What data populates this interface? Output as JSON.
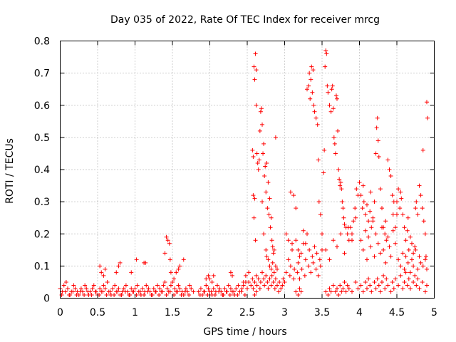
{
  "chart_data": {
    "type": "scatter",
    "title": "Day 035 of 2022, Rate Of TEC Index for receiver mrcg",
    "xlabel": "GPS time / hours",
    "ylabel": "ROTI / TECUs",
    "xlim": [
      0,
      5
    ],
    "ylim": [
      0,
      0.8
    ],
    "grid": true,
    "marker": "+",
    "series_color": "#ff0000",
    "x_ticks": [
      {
        "value": 0,
        "label": "0"
      },
      {
        "value": 0.5,
        "label": "0.5"
      },
      {
        "value": 1,
        "label": "1"
      },
      {
        "value": 1.5,
        "label": "1.5"
      },
      {
        "value": 2,
        "label": "2"
      },
      {
        "value": 2.5,
        "label": "2.5"
      },
      {
        "value": 3,
        "label": "3"
      },
      {
        "value": 3.5,
        "label": "3.5"
      },
      {
        "value": 4,
        "label": "4"
      },
      {
        "value": 4.5,
        "label": "4.5"
      },
      {
        "value": 5,
        "label": "5"
      }
    ],
    "y_ticks": [
      {
        "value": 0,
        "label": "0"
      },
      {
        "value": 0.1,
        "label": "0.1"
      },
      {
        "value": 0.2,
        "label": "0.2"
      },
      {
        "value": 0.3,
        "label": "0.3"
      },
      {
        "value": 0.4,
        "label": "0.4"
      },
      {
        "value": 0.5,
        "label": "0.5"
      },
      {
        "value": 0.6,
        "label": "0.6"
      },
      {
        "value": 0.7,
        "label": "0.7"
      },
      {
        "value": 0.8,
        "label": "0.8"
      }
    ],
    "series": [
      {
        "name": "ROTI",
        "x": [
          0.0,
          0.03,
          0.05,
          0.08,
          0.1,
          0.13,
          0.15,
          0.18,
          0.2,
          0.23,
          0.25,
          0.28,
          0.3,
          0.33,
          0.35,
          0.38,
          0.4,
          0.43,
          0.45,
          0.48,
          0.5,
          0.53,
          0.55,
          0.58,
          0.6,
          0.63,
          0.65,
          0.68,
          0.7,
          0.73,
          0.75,
          0.78,
          0.8,
          0.83,
          0.85,
          0.88,
          0.9,
          0.93,
          0.95,
          0.98,
          1.0,
          1.03,
          1.05,
          1.08,
          1.1,
          1.13,
          1.15,
          1.18,
          1.2,
          1.23,
          1.25,
          1.28,
          1.3,
          1.33,
          1.35,
          1.38,
          1.4,
          1.43,
          1.45,
          1.48,
          1.5,
          1.53,
          1.55,
          1.58,
          1.6,
          1.63,
          1.65,
          1.68,
          1.7,
          1.73,
          1.75,
          1.78,
          0.02,
          0.07,
          0.12,
          0.17,
          0.22,
          0.27,
          0.32,
          0.37,
          0.42,
          0.47,
          0.52,
          0.57,
          0.62,
          0.67,
          0.72,
          0.77,
          0.82,
          0.87,
          0.92,
          0.97,
          1.02,
          1.07,
          1.12,
          1.17,
          1.22,
          1.27,
          1.32,
          1.37,
          1.42,
          1.47,
          1.52,
          1.57,
          1.62,
          1.67,
          1.72,
          0.53,
          0.55,
          0.58,
          0.6,
          0.75,
          0.78,
          0.8,
          0.95,
          1.02,
          1.12,
          1.14,
          1.4,
          1.42,
          1.44,
          1.46,
          1.47,
          1.48,
          1.52,
          1.55,
          1.58,
          1.6,
          1.65,
          1.85,
          1.88,
          1.9,
          1.93,
          1.95,
          1.98,
          2.0,
          2.03,
          2.05,
          2.08,
          2.1,
          2.13,
          2.15,
          2.18,
          2.2,
          2.23,
          2.25,
          2.28,
          2.3,
          2.33,
          2.35,
          2.38,
          2.4,
          2.43,
          2.45,
          2.48,
          2.5,
          1.87,
          1.92,
          1.97,
          2.02,
          2.07,
          2.12,
          2.17,
          2.22,
          2.27,
          2.32,
          2.37,
          2.42,
          2.47,
          1.95,
          1.98,
          2.0,
          2.03,
          2.05,
          2.28,
          2.3,
          2.45,
          2.48,
          2.52,
          2.52,
          2.55,
          2.57,
          2.58,
          2.6,
          2.62,
          2.63,
          2.65,
          2.67,
          2.68,
          2.7,
          2.72,
          2.73,
          2.75,
          2.77,
          2.78,
          2.8,
          2.82,
          2.83,
          2.85,
          2.87,
          2.88,
          2.9,
          2.92,
          2.93,
          2.95,
          2.97,
          2.98,
          2.57,
          2.58,
          2.59,
          2.6,
          2.61,
          2.62,
          2.63,
          2.64,
          2.65,
          2.66,
          2.67,
          2.68,
          2.69,
          2.7,
          2.71,
          2.72,
          2.73,
          2.74,
          2.75,
          2.76,
          2.77,
          2.78,
          2.79,
          2.8,
          2.81,
          2.82,
          2.83,
          2.84,
          2.85,
          2.86,
          2.88,
          2.58,
          2.59,
          2.6,
          2.61,
          2.62,
          2.7,
          2.72,
          2.75,
          2.76,
          2.78,
          2.8,
          2.82,
          2.84,
          2.86,
          2.88,
          2.9,
          3.0,
          3.02,
          3.05,
          3.07,
          3.08,
          3.1,
          3.12,
          3.13,
          3.15,
          3.17,
          3.18,
          3.2,
          3.22,
          3.23,
          3.25,
          3.27,
          3.28,
          3.3,
          3.32,
          3.33,
          3.35,
          3.37,
          3.38,
          3.4,
          3.42,
          3.43,
          3.45,
          3.47,
          3.48,
          3.5,
          3.02,
          3.05,
          3.08,
          3.1,
          3.12,
          3.15,
          3.18,
          3.2,
          3.25,
          3.28,
          3.3,
          3.32,
          3.33,
          3.34,
          3.35,
          3.36,
          3.37,
          3.38,
          3.39,
          3.4,
          3.42,
          3.44,
          3.45,
          3.46,
          3.48,
          3.5,
          3.52,
          3.53,
          3.54,
          3.55,
          3.56,
          3.57,
          3.58,
          3.6,
          3.62,
          3.63,
          3.64,
          3.65,
          3.66,
          3.67,
          3.68,
          3.69,
          3.7,
          3.71,
          3.72,
          3.73,
          3.74,
          3.75,
          3.76,
          3.77,
          3.78,
          3.79,
          3.8,
          3.82,
          3.84,
          3.86,
          3.88,
          3.9,
          3.92,
          3.94,
          3.96,
          3.98,
          3.55,
          3.6,
          3.65,
          3.7,
          3.75,
          3.8,
          3.85,
          3.9,
          3.95,
          4.0,
          4.02,
          4.04,
          4.05,
          4.06,
          4.08,
          4.1,
          4.12,
          4.14,
          4.15,
          4.16,
          4.18,
          4.2,
          4.22,
          4.23,
          4.24,
          4.25,
          4.26,
          4.28,
          4.3,
          4.32,
          4.34,
          4.35,
          4.36,
          4.38,
          4.4,
          4.42,
          4.44,
          4.45,
          4.46,
          4.48,
          4.5,
          4.02,
          4.05,
          4.08,
          4.1,
          4.12,
          4.15,
          4.18,
          4.2,
          4.22,
          4.25,
          4.28,
          4.3,
          4.32,
          4.35,
          4.38,
          4.4,
          4.42,
          4.45,
          4.48,
          4.5,
          4.52,
          4.54,
          4.55,
          4.56,
          4.58,
          4.6,
          4.62,
          4.64,
          4.65,
          4.66,
          4.68,
          4.7,
          4.72,
          4.74,
          4.75,
          4.76,
          4.78,
          4.8,
          4.82,
          4.84,
          4.85,
          4.86,
          4.88,
          4.89,
          4.9,
          4.91,
          4.52,
          4.55,
          4.58,
          4.6,
          4.62,
          4.65,
          4.68,
          4.7,
          4.72,
          4.75,
          4.78,
          4.8,
          4.82,
          4.85,
          4.88,
          4.9,
          2.6,
          2.62,
          3.15,
          3.18,
          3.2,
          3.22,
          3.55,
          3.58,
          3.6,
          3.62,
          3.65,
          3.68,
          3.7,
          3.72,
          3.74,
          3.76,
          3.78,
          3.8,
          3.82,
          3.84,
          3.86,
          3.9,
          3.95,
          3.98,
          4.02,
          4.05,
          4.08,
          4.1,
          4.12,
          4.14,
          4.16,
          4.2,
          4.22,
          4.24,
          4.26,
          4.28,
          4.3,
          4.32,
          4.34,
          4.36,
          4.38,
          4.42,
          4.44,
          4.46,
          4.48,
          4.52,
          4.55,
          4.58,
          4.6,
          4.62,
          4.64,
          4.66,
          4.68,
          4.72,
          4.74,
          4.76,
          4.78,
          4.8,
          4.84,
          4.88,
          4.9
        ],
        "y": [
          0.03,
          0.02,
          0.04,
          0.05,
          0.03,
          0.01,
          0.02,
          0.04,
          0.03,
          0.02,
          0.01,
          0.03,
          0.02,
          0.04,
          0.03,
          0.01,
          0.02,
          0.03,
          0.04,
          0.02,
          0.01,
          0.03,
          0.02,
          0.04,
          0.03,
          0.05,
          0.02,
          0.01,
          0.03,
          0.04,
          0.02,
          0.03,
          0.01,
          0.02,
          0.03,
          0.04,
          0.02,
          0.01,
          0.03,
          0.02,
          0.03,
          0.04,
          0.02,
          0.01,
          0.03,
          0.02,
          0.04,
          0.03,
          0.02,
          0.01,
          0.03,
          0.02,
          0.04,
          0.03,
          0.02,
          0.04,
          0.05,
          0.03,
          0.02,
          0.04,
          0.05,
          0.03,
          0.02,
          0.04,
          0.03,
          0.02,
          0.01,
          0.03,
          0.02,
          0.04,
          0.03,
          0.02,
          0.01,
          0.02,
          0.01,
          0.02,
          0.01,
          0.02,
          0.01,
          0.02,
          0.01,
          0.02,
          0.01,
          0.02,
          0.01,
          0.02,
          0.01,
          0.02,
          0.01,
          0.02,
          0.01,
          0.02,
          0.01,
          0.02,
          0.01,
          0.02,
          0.01,
          0.02,
          0.01,
          0.02,
          0.01,
          0.02,
          0.01,
          0.02,
          0.01,
          0.02,
          0.01,
          0.1,
          0.08,
          0.07,
          0.09,
          0.08,
          0.1,
          0.11,
          0.08,
          0.12,
          0.11,
          0.11,
          0.14,
          0.19,
          0.18,
          0.17,
          0.12,
          0.08,
          0.06,
          0.08,
          0.09,
          0.1,
          0.12,
          0.02,
          0.03,
          0.01,
          0.02,
          0.04,
          0.03,
          0.02,
          0.01,
          0.03,
          0.02,
          0.04,
          0.03,
          0.02,
          0.01,
          0.03,
          0.02,
          0.04,
          0.03,
          0.02,
          0.01,
          0.03,
          0.04,
          0.02,
          0.03,
          0.04,
          0.05,
          0.03,
          0.01,
          0.02,
          0.01,
          0.02,
          0.01,
          0.02,
          0.01,
          0.02,
          0.01,
          0.02,
          0.01,
          0.02,
          0.01,
          0.06,
          0.07,
          0.06,
          0.05,
          0.07,
          0.08,
          0.07,
          0.05,
          0.07,
          0.08,
          0.05,
          0.04,
          0.06,
          0.03,
          0.05,
          0.07,
          0.04,
          0.06,
          0.03,
          0.05,
          0.08,
          0.06,
          0.04,
          0.07,
          0.05,
          0.03,
          0.06,
          0.04,
          0.07,
          0.05,
          0.03,
          0.06,
          0.04,
          0.02,
          0.05,
          0.03,
          0.04,
          0.06,
          0.46,
          0.44,
          0.72,
          0.68,
          0.76,
          0.71,
          0.45,
          0.42,
          0.4,
          0.43,
          0.52,
          0.58,
          0.59,
          0.54,
          0.45,
          0.48,
          0.38,
          0.41,
          0.33,
          0.42,
          0.28,
          0.36,
          0.26,
          0.31,
          0.22,
          0.25,
          0.18,
          0.16,
          0.14,
          0.15,
          0.5,
          0.32,
          0.25,
          0.31,
          0.18,
          0.6,
          0.3,
          0.2,
          0.15,
          0.13,
          0.12,
          0.1,
          0.09,
          0.11,
          0.08,
          0.1,
          0.09,
          0.05,
          0.08,
          0.12,
          0.07,
          0.1,
          0.15,
          0.06,
          0.09,
          0.18,
          0.08,
          0.11,
          0.06,
          0.14,
          0.09,
          0.17,
          0.07,
          0.12,
          0.2,
          0.1,
          0.15,
          0.08,
          0.13,
          0.11,
          0.16,
          0.09,
          0.14,
          0.07,
          0.12,
          0.1,
          0.15,
          0.2,
          0.18,
          0.33,
          0.17,
          0.32,
          0.28,
          0.15,
          0.13,
          0.21,
          0.17,
          0.65,
          0.66,
          0.7,
          0.62,
          0.68,
          0.72,
          0.64,
          0.71,
          0.6,
          0.58,
          0.56,
          0.54,
          0.43,
          0.3,
          0.26,
          0.2,
          0.39,
          0.46,
          0.72,
          0.77,
          0.76,
          0.66,
          0.64,
          0.6,
          0.58,
          0.65,
          0.66,
          0.59,
          0.5,
          0.48,
          0.45,
          0.63,
          0.62,
          0.52,
          0.4,
          0.37,
          0.35,
          0.36,
          0.34,
          0.3,
          0.28,
          0.25,
          0.23,
          0.22,
          0.2,
          0.18,
          0.22,
          0.2,
          0.24,
          0.28,
          0.34,
          0.32,
          0.15,
          0.12,
          0.18,
          0.16,
          0.2,
          0.14,
          0.22,
          0.18,
          0.25,
          0.36,
          0.32,
          0.28,
          0.35,
          0.3,
          0.26,
          0.29,
          0.24,
          0.27,
          0.33,
          0.22,
          0.25,
          0.3,
          0.45,
          0.53,
          0.56,
          0.49,
          0.44,
          0.34,
          0.28,
          0.22,
          0.2,
          0.24,
          0.18,
          0.43,
          0.4,
          0.38,
          0.32,
          0.26,
          0.3,
          0.22,
          0.26,
          0.18,
          0.15,
          0.21,
          0.12,
          0.19,
          0.16,
          0.24,
          0.13,
          0.2,
          0.17,
          0.14,
          0.22,
          0.15,
          0.11,
          0.19,
          0.16,
          0.13,
          0.21,
          0.17,
          0.3,
          0.34,
          0.28,
          0.33,
          0.31,
          0.26,
          0.22,
          0.18,
          0.21,
          0.25,
          0.15,
          0.19,
          0.17,
          0.14,
          0.16,
          0.28,
          0.3,
          0.26,
          0.35,
          0.32,
          0.28,
          0.46,
          0.24,
          0.2,
          0.13,
          0.61,
          0.56,
          0.12,
          0.1,
          0.14,
          0.09,
          0.13,
          0.11,
          0.08,
          0.12,
          0.1,
          0.15,
          0.09,
          0.13,
          0.11,
          0.1,
          0.12,
          0.09,
          0.01,
          0.02,
          0.02,
          0.01,
          0.03,
          0.02,
          0.02,
          0.01,
          0.03,
          0.02,
          0.04,
          0.02,
          0.03,
          0.01,
          0.04,
          0.02,
          0.03,
          0.05,
          0.02,
          0.04,
          0.03,
          0.02,
          0.05,
          0.03,
          0.04,
          0.02,
          0.05,
          0.03,
          0.06,
          0.04,
          0.02,
          0.05,
          0.03,
          0.06,
          0.04,
          0.02,
          0.05,
          0.07,
          0.03,
          0.06,
          0.04,
          0.02,
          0.05,
          0.03,
          0.06,
          0.04,
          0.07,
          0.03,
          0.05,
          0.08,
          0.04,
          0.06,
          0.03,
          0.05,
          0.07,
          0.04,
          0.06,
          0.03,
          0.05,
          0.02,
          0.04
        ]
      }
    ]
  }
}
